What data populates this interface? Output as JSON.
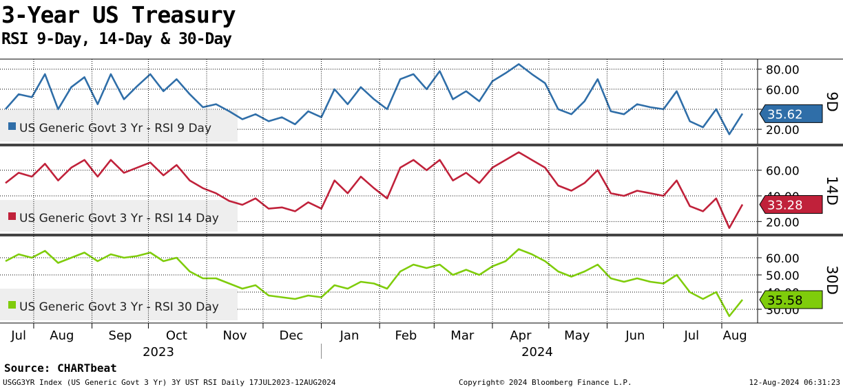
{
  "title": "3-Year US Treasury",
  "subtitle": "RSI 9-Day, 14-Day & 30-Day",
  "source": "Source:  CHARTbeat",
  "footer": {
    "left": "USGG3YR Index (US Generic Govt 3 Yr) 3Y UST RSI  Daily 17JUL2023-12AUG2024",
    "middle": "Copyright© 2024 Bloomberg Finance L.P.",
    "right": "12-Aug-2024 06:31:23"
  },
  "colors": {
    "rsi9": "#2f6ea8",
    "rsi14": "#c0213a",
    "rsi30": "#7fcc0b"
  },
  "chart_data": {
    "type": "line",
    "x_axis": {
      "months": [
        "Jul",
        "Aug",
        "Sep",
        "Oct",
        "Nov",
        "Dec",
        "Jan",
        "Feb",
        "Mar",
        "Apr",
        "May",
        "Jun",
        "Jul",
        "Aug"
      ],
      "years": [
        "2023",
        "2024"
      ],
      "range": [
        "2023-07-17",
        "2024-08-12"
      ]
    },
    "panels": [
      {
        "id": "rsi9",
        "side_label": "9D",
        "legend": "US Generic Govt 3 Yr - RSI 9 Day",
        "last_value": "35.62",
        "ylim": [
          5,
          90
        ],
        "yticks": [
          "80.00",
          "60.00",
          "40.00",
          "20.00"
        ],
        "ytick_values": [
          80,
          60,
          40,
          20
        ],
        "series": {
          "name": "US Generic Govt 3 Yr - RSI 9 Day",
          "x": [
            "2023-07-17",
            "2023-07-24",
            "2023-07-31",
            "2023-08-07",
            "2023-08-14",
            "2023-08-21",
            "2023-08-28",
            "2023-09-04",
            "2023-09-11",
            "2023-09-18",
            "2023-09-25",
            "2023-10-02",
            "2023-10-09",
            "2023-10-16",
            "2023-10-23",
            "2023-10-30",
            "2023-11-06",
            "2023-11-13",
            "2023-11-20",
            "2023-11-27",
            "2023-12-04",
            "2023-12-11",
            "2023-12-18",
            "2023-12-25",
            "2024-01-01",
            "2024-01-08",
            "2024-01-15",
            "2024-01-22",
            "2024-01-29",
            "2024-02-05",
            "2024-02-12",
            "2024-02-19",
            "2024-02-26",
            "2024-03-04",
            "2024-03-11",
            "2024-03-18",
            "2024-03-25",
            "2024-04-01",
            "2024-04-08",
            "2024-04-15",
            "2024-04-22",
            "2024-04-29",
            "2024-05-06",
            "2024-05-13",
            "2024-05-20",
            "2024-05-27",
            "2024-06-03",
            "2024-06-10",
            "2024-06-17",
            "2024-06-24",
            "2024-07-01",
            "2024-07-08",
            "2024-07-15",
            "2024-07-22",
            "2024-07-29",
            "2024-08-05",
            "2024-08-12"
          ],
          "values": [
            40,
            55,
            52,
            75,
            40,
            62,
            72,
            45,
            75,
            50,
            63,
            75,
            58,
            70,
            55,
            42,
            45,
            38,
            30,
            35,
            28,
            32,
            25,
            38,
            32,
            60,
            45,
            62,
            50,
            40,
            70,
            75,
            60,
            78,
            50,
            58,
            48,
            68,
            76,
            85,
            75,
            66,
            40,
            35,
            48,
            70,
            38,
            35,
            45,
            42,
            40,
            58,
            28,
            22,
            40,
            15,
            35.62
          ]
        }
      },
      {
        "id": "rsi14",
        "side_label": "14D",
        "legend": "US Generic Govt 3 Yr - RSI 14 Day",
        "last_value": "33.28",
        "ylim": [
          10,
          78
        ],
        "yticks": [
          "60.00",
          "40.00",
          "20.00"
        ],
        "ytick_values": [
          60,
          40,
          20
        ],
        "series": {
          "name": "US Generic Govt 3 Yr - RSI 14 Day",
          "x": [
            "2023-07-17",
            "2023-07-24",
            "2023-07-31",
            "2023-08-07",
            "2023-08-14",
            "2023-08-21",
            "2023-08-28",
            "2023-09-04",
            "2023-09-11",
            "2023-09-18",
            "2023-09-25",
            "2023-10-02",
            "2023-10-09",
            "2023-10-16",
            "2023-10-23",
            "2023-10-30",
            "2023-11-06",
            "2023-11-13",
            "2023-11-20",
            "2023-11-27",
            "2023-12-04",
            "2023-12-11",
            "2023-12-18",
            "2023-12-25",
            "2024-01-01",
            "2024-01-08",
            "2024-01-15",
            "2024-01-22",
            "2024-01-29",
            "2024-02-05",
            "2024-02-12",
            "2024-02-19",
            "2024-02-26",
            "2024-03-04",
            "2024-03-11",
            "2024-03-18",
            "2024-03-25",
            "2024-04-01",
            "2024-04-08",
            "2024-04-15",
            "2024-04-22",
            "2024-04-29",
            "2024-05-06",
            "2024-05-13",
            "2024-05-20",
            "2024-05-27",
            "2024-06-03",
            "2024-06-10",
            "2024-06-17",
            "2024-06-24",
            "2024-07-01",
            "2024-07-08",
            "2024-07-15",
            "2024-07-22",
            "2024-07-29",
            "2024-08-05",
            "2024-08-12"
          ],
          "values": [
            50,
            58,
            55,
            65,
            52,
            62,
            68,
            55,
            68,
            58,
            62,
            66,
            56,
            64,
            52,
            46,
            42,
            36,
            33,
            38,
            30,
            31,
            28,
            35,
            30,
            52,
            42,
            55,
            46,
            38,
            62,
            68,
            60,
            68,
            52,
            58,
            50,
            62,
            68,
            74,
            68,
            62,
            48,
            44,
            50,
            60,
            42,
            40,
            44,
            42,
            40,
            52,
            32,
            28,
            38,
            15,
            33.28
          ]
        }
      },
      {
        "id": "rsi30",
        "side_label": "30D",
        "legend": "US Generic Govt 3 Yr - RSI 30 Day",
        "last_value": "35.58",
        "ylim": [
          22,
          72
        ],
        "yticks": [
          "60.00",
          "50.00",
          "40.00",
          "30.00"
        ],
        "ytick_values": [
          60,
          50,
          40,
          30
        ],
        "series": {
          "name": "US Generic Govt 3 Yr - RSI 30 Day",
          "x": [
            "2023-07-17",
            "2023-07-24",
            "2023-07-31",
            "2023-08-07",
            "2023-08-14",
            "2023-08-21",
            "2023-08-28",
            "2023-09-04",
            "2023-09-11",
            "2023-09-18",
            "2023-09-25",
            "2023-10-02",
            "2023-10-09",
            "2023-10-16",
            "2023-10-23",
            "2023-10-30",
            "2023-11-06",
            "2023-11-13",
            "2023-11-20",
            "2023-11-27",
            "2023-12-04",
            "2023-12-11",
            "2023-12-18",
            "2023-12-25",
            "2024-01-01",
            "2024-01-08",
            "2024-01-15",
            "2024-01-22",
            "2024-01-29",
            "2024-02-05",
            "2024-02-12",
            "2024-02-19",
            "2024-02-26",
            "2024-03-04",
            "2024-03-11",
            "2024-03-18",
            "2024-03-25",
            "2024-04-01",
            "2024-04-08",
            "2024-04-15",
            "2024-04-22",
            "2024-04-29",
            "2024-05-06",
            "2024-05-13",
            "2024-05-20",
            "2024-05-27",
            "2024-06-03",
            "2024-06-10",
            "2024-06-17",
            "2024-06-24",
            "2024-07-01",
            "2024-07-08",
            "2024-07-15",
            "2024-07-22",
            "2024-07-29",
            "2024-08-05",
            "2024-08-12"
          ],
          "values": [
            58,
            62,
            60,
            64,
            57,
            60,
            63,
            58,
            62,
            60,
            61,
            63,
            58,
            60,
            52,
            48,
            48,
            45,
            42,
            44,
            38,
            37,
            36,
            38,
            37,
            44,
            42,
            46,
            45,
            42,
            52,
            56,
            54,
            56,
            50,
            53,
            50,
            55,
            58,
            65,
            62,
            58,
            52,
            49,
            52,
            56,
            48,
            46,
            48,
            46,
            45,
            50,
            40,
            36,
            40,
            26,
            35.58
          ]
        }
      }
    ]
  }
}
